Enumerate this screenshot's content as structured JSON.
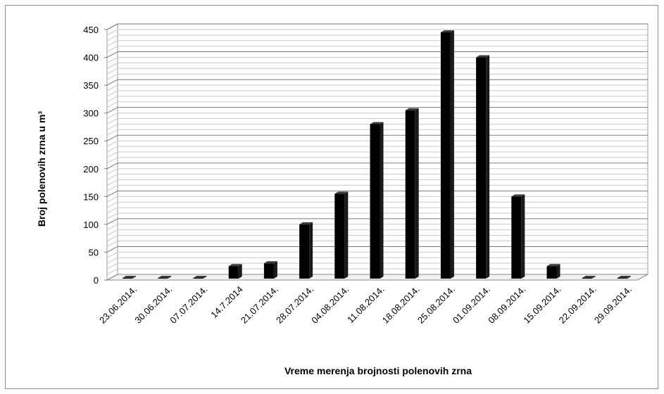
{
  "chart_data": {
    "type": "bar",
    "categories": [
      "23.06.2014.",
      "30.06.2014.",
      "07.07.2014.",
      "14.7.2014",
      "21.07.2014.",
      "28.07.2014.",
      "04.08.2014.",
      "11.08.2014.",
      "18.08.2014.",
      "25.08.2014.",
      "01.09.2014.",
      "08.09.2014.",
      "15.09.2014.",
      "22.09.2014.",
      "29.09.2014."
    ],
    "values": [
      0,
      0,
      0,
      25,
      30,
      100,
      155,
      280,
      305,
      445,
      400,
      150,
      25,
      0,
      0
    ],
    "xlabel": "Vreme merenja brojnosti polenovih zrna",
    "ylabel": "Broj polenovih zrna u m³",
    "ylim": [
      0,
      450
    ],
    "yticks": [
      "0",
      "50",
      "100",
      "150",
      "200",
      "250",
      "300",
      "350",
      "400",
      "450"
    ],
    "grid": true,
    "bar_color": "#000000",
    "style": "3d-column",
    "legend": "none"
  }
}
